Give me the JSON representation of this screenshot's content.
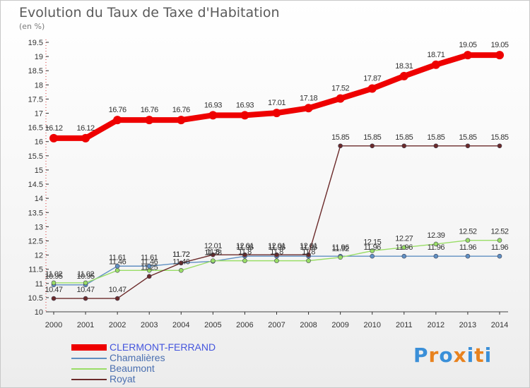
{
  "chart_data": {
    "type": "line",
    "title": "Evolution du Taux de Taxe d'Habitation",
    "unit_label": "(en %)",
    "x": [
      "2000",
      "2001",
      "2002",
      "2003",
      "2004",
      "2005",
      "2006",
      "2007",
      "2008",
      "2009",
      "2010",
      "2011",
      "2012",
      "2013",
      "2014"
    ],
    "ylim": [
      10,
      19.5
    ],
    "yticks": [
      "10",
      "10.5",
      "11",
      "11.5",
      "12",
      "12.5",
      "13",
      "13.5",
      "14",
      "14.5",
      "15",
      "15.5",
      "16",
      "16.5",
      "17",
      "17.5",
      "18",
      "18.5",
      "19",
      "19.5"
    ],
    "grid": false,
    "legend_position": "bottom-left",
    "series": [
      {
        "name": "CLERMONT-FERRAND",
        "color": "#ee0000",
        "values": [
          16.12,
          16.12,
          16.76,
          16.76,
          16.76,
          16.93,
          16.93,
          17.01,
          17.18,
          17.52,
          17.87,
          18.31,
          18.71,
          19.05,
          19.05
        ]
      },
      {
        "name": "Chamalières",
        "color": "#5f8fc2",
        "values": [
          10.95,
          10.95,
          11.61,
          11.61,
          11.72,
          11.78,
          11.96,
          11.96,
          11.96,
          11.96,
          11.96,
          11.96,
          11.96,
          11.96,
          11.96
        ]
      },
      {
        "name": "Beaumont",
        "color": "#99dd66",
        "values": [
          11.02,
          11.02,
          11.46,
          11.46,
          11.46,
          11.8,
          11.8,
          11.8,
          11.8,
          11.92,
          12.15,
          12.27,
          12.39,
          12.52,
          12.52
        ]
      },
      {
        "name": "Royat",
        "color": "#6b2a2a",
        "values": [
          10.47,
          10.47,
          10.47,
          11.25,
          11.72,
          12.01,
          12.01,
          12.01,
          12.01,
          15.85,
          15.85,
          15.85,
          15.85,
          15.85,
          15.85
        ]
      }
    ]
  },
  "brand": {
    "logo_letters": [
      "P",
      "r",
      "o",
      "x",
      "i",
      "t",
      "i"
    ],
    "logo_colors": [
      "#3a8fd8",
      "#e8821e",
      "#3a8fd8",
      "#e8821e",
      "#3a8fd8",
      "#e8821e",
      "#3a8fd8"
    ]
  }
}
